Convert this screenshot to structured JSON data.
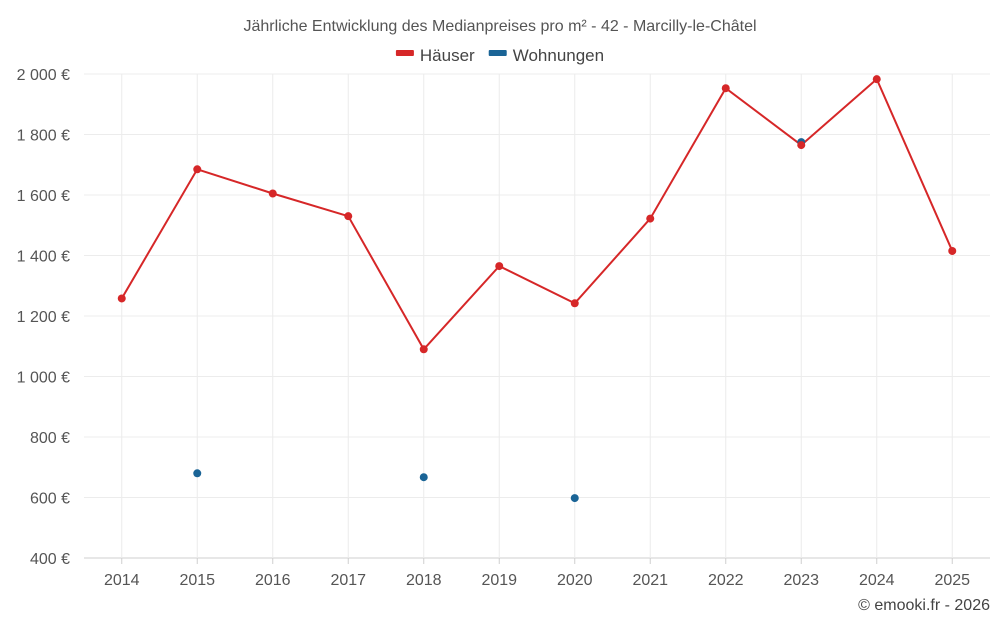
{
  "chart_data": {
    "type": "line",
    "title": "Jährliche Entwicklung des Medianpreises pro m² - 42 - Marcilly-le-Châtel",
    "categories": [
      "2014",
      "2015",
      "2016",
      "2017",
      "2018",
      "2019",
      "2020",
      "2021",
      "2022",
      "2023",
      "2024",
      "2025"
    ],
    "series": [
      {
        "name": "Häuser",
        "color": "#d62728",
        "mode": "lines+markers",
        "values": [
          1258,
          1685,
          1605,
          1530,
          1090,
          1365,
          1242,
          1522,
          1953,
          1765,
          1983,
          1415
        ]
      },
      {
        "name": "Wohnungen",
        "color": "#1a6496",
        "mode": "markers",
        "values": [
          null,
          680,
          null,
          null,
          667,
          null,
          598,
          null,
          null,
          1775,
          null,
          null
        ]
      }
    ],
    "ylim": [
      400,
      2000
    ],
    "yticks": [
      400,
      600,
      800,
      1000,
      1200,
      1400,
      1600,
      1800,
      2000
    ],
    "ytick_labels": [
      "400 €",
      "600 €",
      "800 €",
      "1 000 €",
      "1 200 €",
      "1 400 €",
      "1 600 €",
      "1 800 €",
      "2 000 €"
    ],
    "xlabel": "",
    "ylabel": "",
    "grid": true,
    "legend_position": "top-center"
  },
  "credit": "© emooki.fr - 2026"
}
